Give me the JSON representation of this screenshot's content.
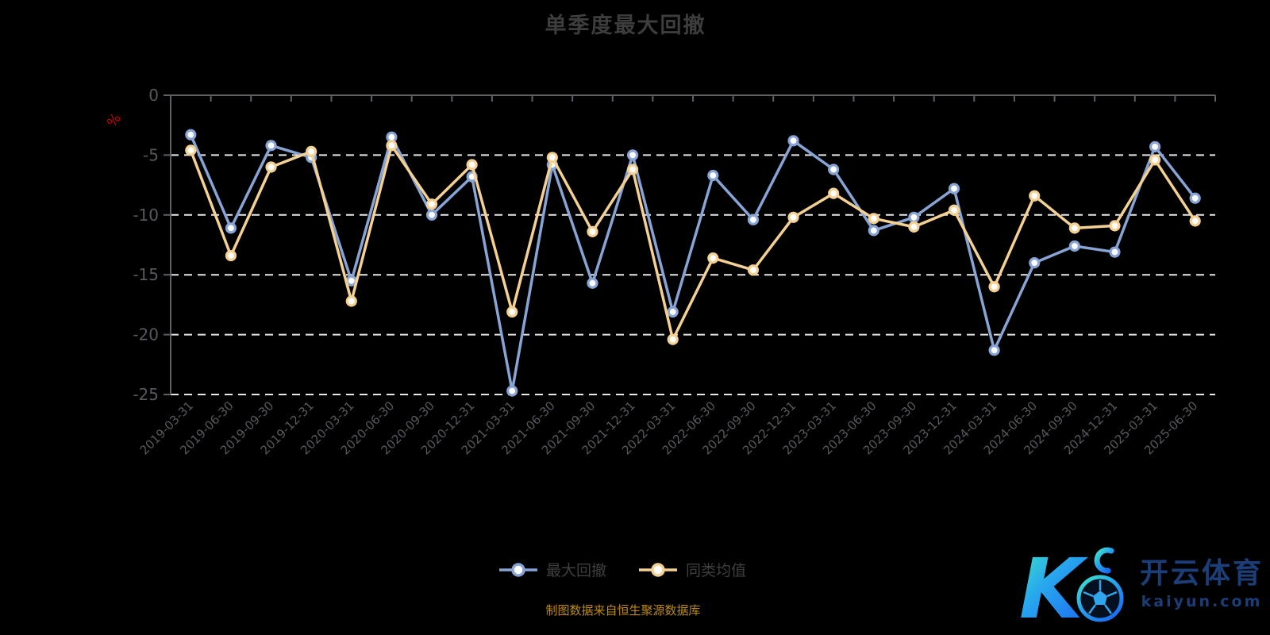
{
  "title": "单季度最大回撤",
  "y_axis_unit": "%",
  "source_note": "制图数据来自恒生聚源数据库",
  "watermark": {
    "brand_cn": "开云体育",
    "brand_url": "kaiyun.com",
    "logo_letter": "K"
  },
  "colors": {
    "background": "#000000",
    "title": "#3D3D3D",
    "axis_line": "#5E6066",
    "tick_label": "#56585E",
    "grid_line": "#E8E8E8",
    "legend_text": "#3F3F3F",
    "source_text": "#BD8A0F",
    "unit_label": "#C40000",
    "watermark_text": "#1C3E78",
    "series_max_drawdown": "#87A4D4",
    "series_category_avg": "#F4D193"
  },
  "chart_data": {
    "type": "line",
    "title": "单季度最大回撤",
    "xlabel": "",
    "ylabel": "%",
    "ylim": [
      -25,
      0
    ],
    "y_ticks": [
      0,
      -5,
      -10,
      -15,
      -20,
      -25
    ],
    "grid": "horizontal dashed",
    "legend_position": "bottom-center",
    "categories": [
      "2019-03-31",
      "2019-06-30",
      "2019-09-30",
      "2019-12-31",
      "2020-03-31",
      "2020-06-30",
      "2020-09-30",
      "2020-12-31",
      "2021-03-31",
      "2021-06-30",
      "2021-09-30",
      "2021-12-31",
      "2022-03-31",
      "2022-06-30",
      "2022-09-30",
      "2022-12-31",
      "2023-03-31",
      "2023-06-30",
      "2023-09-30",
      "2023-12-31",
      "2024-03-31",
      "2024-06-30",
      "2024-09-30",
      "2024-12-31",
      "2025-03-31",
      "2025-06-30"
    ],
    "series": [
      {
        "name": "最大回撤",
        "color": "#87A4D4",
        "values": [
          -3.3,
          -11.1,
          -4.2,
          -5.2,
          -15.5,
          -3.5,
          -10.0,
          -6.8,
          -24.7,
          -5.8,
          -15.7,
          -5.0,
          -18.1,
          -6.7,
          -10.4,
          -3.8,
          -6.2,
          -11.3,
          -10.2,
          -7.8,
          -21.3,
          -14.0,
          -12.6,
          -13.1,
          -4.3,
          -8.6
        ]
      },
      {
        "name": "同类均值",
        "color": "#F4D193",
        "values": [
          -4.6,
          -13.4,
          -6.0,
          -4.7,
          -17.2,
          -4.2,
          -9.1,
          -5.8,
          -18.1,
          -5.2,
          -11.4,
          -6.2,
          -20.4,
          -13.6,
          -14.6,
          -10.2,
          -8.2,
          -10.3,
          -11.0,
          -9.6,
          -16.0,
          -8.4,
          -11.1,
          -10.9,
          -5.4,
          -10.5
        ]
      }
    ]
  }
}
